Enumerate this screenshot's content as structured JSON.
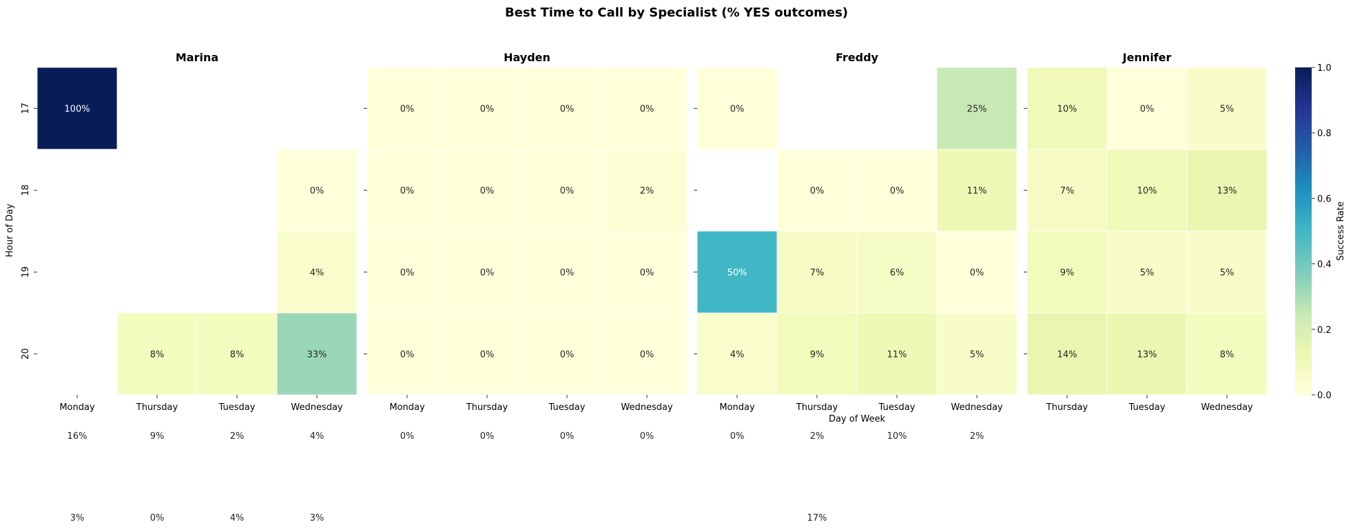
{
  "chart_data": {
    "type": "heatmap",
    "title": "Best Time to Call by Specialist (% YES outcomes)",
    "ylabel": "Hour of Day",
    "xlabel": "Day of Week",
    "hours": [
      "17",
      "18",
      "19",
      "20"
    ],
    "colorbar": {
      "label": "Success Rate",
      "range": [
        0,
        1
      ],
      "ticks": [
        "0.0",
        "0.2",
        "0.4",
        "0.6",
        "0.8",
        "1.0"
      ],
      "colormap": "YlGnBu",
      "colors": [
        "#ffffd9",
        "#edf8b1",
        "#c7e9b4",
        "#7fcdbb",
        "#41b6c4",
        "#1d91c0",
        "#225ea8",
        "#253494",
        "#081d58"
      ]
    },
    "panels": [
      {
        "name": "Marina",
        "days": [
          "Monday",
          "Thursday",
          "Tuesday",
          "Wednesday"
        ],
        "values": [
          [
            1.0,
            null,
            null,
            null
          ],
          [
            null,
            null,
            null,
            0.0
          ],
          [
            null,
            null,
            null,
            0.04
          ],
          [
            null,
            0.08,
            0.08,
            0.33
          ]
        ],
        "labels": [
          [
            "100%",
            "",
            "",
            ""
          ],
          [
            "",
            "",
            "",
            "0%"
          ],
          [
            "",
            "",
            "",
            "4%"
          ],
          [
            "",
            "8%",
            "8%",
            "33%"
          ]
        ]
      },
      {
        "name": "Hayden",
        "days": [
          "Monday",
          "Thursday",
          "Tuesday",
          "Wednesday"
        ],
        "values": [
          [
            0.0,
            0.0,
            0.0,
            0.0
          ],
          [
            0.0,
            0.0,
            0.0,
            0.02
          ],
          [
            0.0,
            0.0,
            0.0,
            0.0
          ],
          [
            0.0,
            0.0,
            0.0,
            0.0
          ]
        ],
        "labels": [
          [
            "0%",
            "0%",
            "0%",
            "0%"
          ],
          [
            "0%",
            "0%",
            "0%",
            "2%"
          ],
          [
            "0%",
            "0%",
            "0%",
            "0%"
          ],
          [
            "0%",
            "0%",
            "0%",
            "0%"
          ]
        ]
      },
      {
        "name": "Freddy",
        "days": [
          "Monday",
          "Thursday",
          "Tuesday",
          "Wednesday"
        ],
        "values": [
          [
            0.0,
            null,
            null,
            0.25
          ],
          [
            null,
            0.0,
            0.0,
            0.11
          ],
          [
            0.5,
            0.07,
            0.06,
            0.0
          ],
          [
            0.04,
            0.09,
            0.11,
            0.05
          ]
        ],
        "labels": [
          [
            "0%",
            "",
            "",
            "25%"
          ],
          [
            "",
            "0%",
            "0%",
            "11%"
          ],
          [
            "50%",
            "7%",
            "6%",
            "0%"
          ],
          [
            "4%",
            "9%",
            "11%",
            "5%"
          ]
        ]
      },
      {
        "name": "Jennifer",
        "days": [
          "Thursday",
          "Tuesday",
          "Wednesday"
        ],
        "values": [
          [
            0.1,
            0.0,
            0.05
          ],
          [
            0.07,
            0.1,
            0.13
          ],
          [
            0.09,
            0.05,
            0.05
          ],
          [
            0.14,
            0.13,
            0.08
          ]
        ],
        "labels": [
          [
            "10%",
            "0%",
            "5%"
          ],
          [
            "7%",
            "10%",
            "13%"
          ],
          [
            "9%",
            "5%",
            "5%"
          ],
          [
            "14%",
            "13%",
            "8%"
          ]
        ]
      }
    ],
    "overflow_labels": {
      "row1": [
        [
          "16%",
          "9%",
          "2%",
          "4%"
        ],
        [
          "0%",
          "0%",
          "0%",
          "0%"
        ],
        [
          "0%",
          "2%",
          "10%",
          "2%"
        ]
      ],
      "row2": [
        [
          "3%",
          "0%",
          "4%",
          "3%"
        ],
        [
          "",
          "",
          "",
          ""
        ],
        [
          "",
          "17%",
          "",
          ""
        ]
      ]
    }
  }
}
